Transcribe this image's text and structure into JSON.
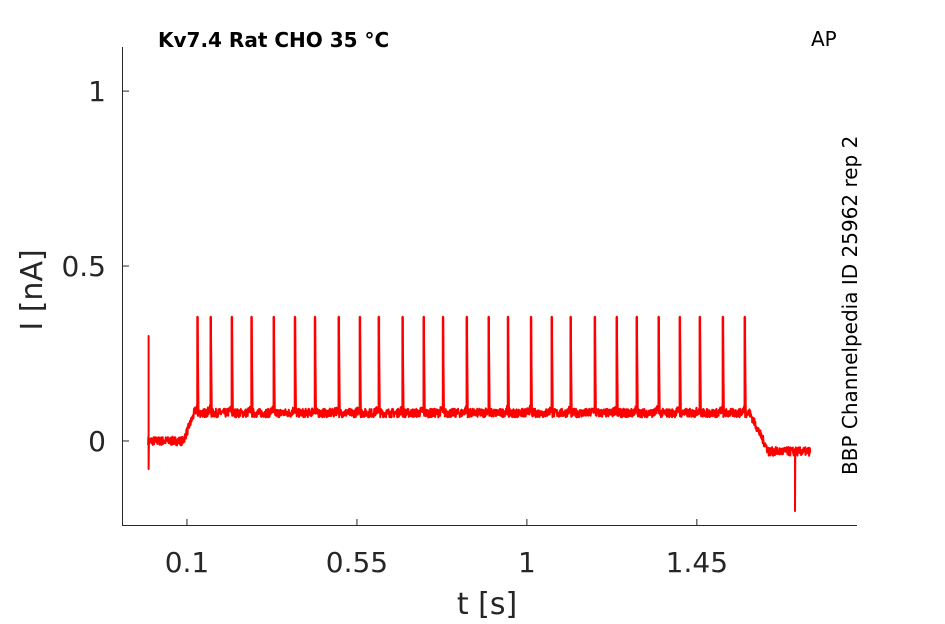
{
  "chart_data": {
    "type": "line",
    "title": "Kv7.4  Rat  CHO  35 °C",
    "corner_label": "AP",
    "side_label": "BBP Channelpedia ID 25962 rep 2",
    "xlabel": "t [s]",
    "ylabel": "I [nA]",
    "xlim": [
      -0.072,
      1.874
    ],
    "ylim": [
      -0.243,
      1.126
    ],
    "xticks": [
      0.1,
      0.55,
      1,
      1.45
    ],
    "xtick_labels": [
      "0.1",
      "0.55",
      "1",
      "1.45"
    ],
    "yticks": [
      0,
      0.5,
      1
    ],
    "ytick_labels": [
      "0",
      "0.5",
      "1"
    ],
    "grid": false,
    "color": "#ff0000",
    "series": [
      {
        "trace_start": -0.003,
        "trace_end": 1.75,
        "initial_transient_peak": 0.3,
        "initial_transient_trough": -0.08,
        "baseline_before": 0.0,
        "step_on": [
          0.09,
          0.12
        ],
        "plateau": 0.08,
        "step_off": [
          1.59,
          1.64
        ],
        "baseline_after": -0.03,
        "late_artifact": {
          "t": 1.71,
          "value": -0.2
        },
        "spike_peak": 0.355,
        "spike_times": [
          0.128,
          0.163,
          0.219,
          0.271,
          0.33,
          0.386,
          0.439,
          0.502,
          0.558,
          0.608,
          0.671,
          0.727,
          0.778,
          0.841,
          0.899,
          0.95,
          1.011,
          1.066,
          1.116,
          1.18,
          1.238,
          1.291,
          1.349,
          1.405,
          1.458,
          1.519,
          1.577
        ]
      }
    ]
  }
}
